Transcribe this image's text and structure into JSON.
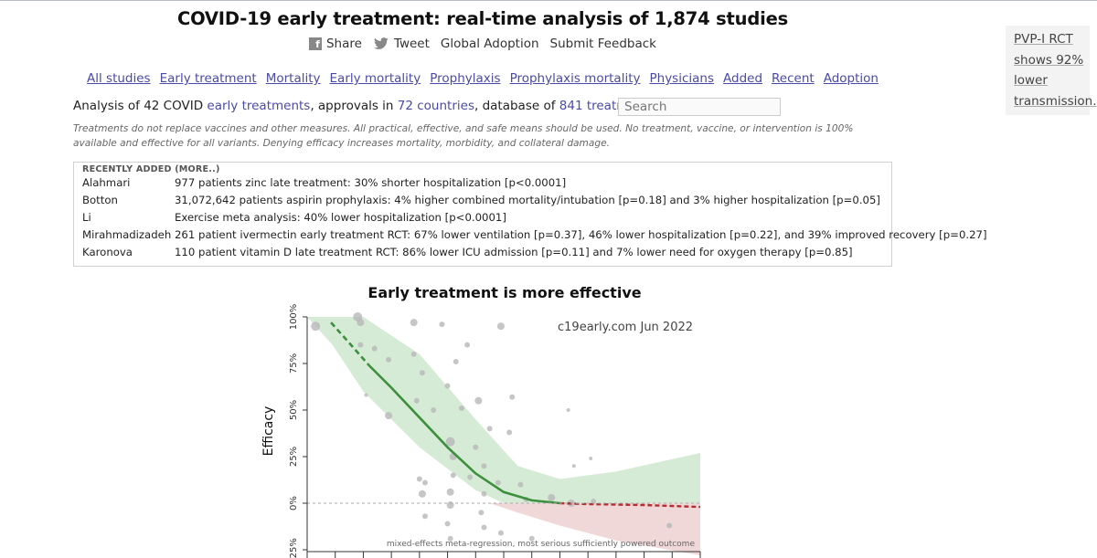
{
  "page": {
    "title": "COVID-19 early treatment: real-time analysis of 1,874 studies"
  },
  "share": {
    "share_label": "Share",
    "tweet_label": "Tweet",
    "global_label": "Global Adoption",
    "feedback_label": "Submit Feedback"
  },
  "nav": {
    "items": [
      "All studies",
      "Early treatment",
      "Mortality",
      "Early mortality",
      "Prophylaxis",
      "Prophylaxis mortality",
      "Physicians",
      "Added",
      "Recent",
      "Adoption"
    ]
  },
  "analysis": {
    "part1": "Analysis of 42 COVID ",
    "link1": "early treatments",
    "part2": ", approvals in ",
    "link2": "72 countries",
    "part3": ", database of ",
    "link3": "841 treatments",
    "part4": "."
  },
  "search": {
    "placeholder": "Search"
  },
  "disclaimer": "Treatments do not replace vaccines and other measures. All practical, effective, and safe means should be used. No treatment, vaccine, or intervention is 100% available and effective for all variants. Denying efficacy increases mortality, morbidity, and collateral damage.",
  "recent": {
    "heading": "RECENTLY ADDED (MORE..)",
    "rows": [
      {
        "author": "Alahmari",
        "summary": "977 patients zinc late treatment: 30% shorter hospitalization [p<0.0001]"
      },
      {
        "author": "Botton",
        "summary": "31,072,642 patients aspirin prophylaxis: 4% higher combined mortality/intubation [p=0.18] and 3% higher hospitalization [p=0.05]"
      },
      {
        "author": "Li",
        "summary": "Exercise meta analysis: 40% lower hospitalization [p<0.0001]"
      },
      {
        "author": "Mirahmadizadeh",
        "summary": "261 patient ivermectin early treatment RCT: 67% lower ventilation [p=0.37], 46% lower hospitalization [p=0.22], and 39% improved recovery [p=0.27]"
      },
      {
        "author": "Karonova",
        "summary": "110 patient vitamin D late treatment RCT: 86% lower ICU admission [p=0.11] and 7% lower need for oxygen therapy [p=0.85]"
      }
    ]
  },
  "side": {
    "lines": [
      "PVP-I RCT",
      "shows 92%",
      "lower",
      "transmission."
    ]
  },
  "chart_data": {
    "type": "scatter",
    "title": "Early treatment is more effective",
    "ylabel": "Efficacy",
    "watermark": "c19early.com Jun 2022",
    "footnote": "mixed-effects meta-regression, most serious sufficiently powered outcome",
    "ylim": [
      -25,
      100
    ],
    "xlim": [
      0,
      14
    ],
    "yticks": [
      "100%",
      "75%",
      "50%",
      "25%",
      "0%",
      "-25%"
    ],
    "ytick_values": [
      100,
      75,
      50,
      25,
      0,
      -25
    ],
    "colors": {
      "fit": "#3d8f3d",
      "fit_neg": "#b03030",
      "band_pos": "#cfe8cf",
      "band_neg": "#f0d4d4",
      "points": "#b8b8b8"
    },
    "fit_curve": [
      {
        "x": 0.85,
        "y": 97
      },
      {
        "x": 1.5,
        "y": 86
      },
      {
        "x": 2.2,
        "y": 74
      },
      {
        "x": 3.0,
        "y": 62
      },
      {
        "x": 4.0,
        "y": 46
      },
      {
        "x": 5.0,
        "y": 30
      },
      {
        "x": 6.0,
        "y": 16
      },
      {
        "x": 7.0,
        "y": 6
      },
      {
        "x": 8.0,
        "y": 1.5
      },
      {
        "x": 9.0,
        "y": 0
      },
      {
        "x": 10.0,
        "y": -0.5
      },
      {
        "x": 12.0,
        "y": -1
      },
      {
        "x": 14.0,
        "y": -2
      }
    ],
    "points": [
      {
        "x": 0.3,
        "y": 95,
        "r": 5
      },
      {
        "x": 1.8,
        "y": 100,
        "r": 5
      },
      {
        "x": 1.9,
        "y": 97,
        "r": 4
      },
      {
        "x": 3.8,
        "y": 97,
        "r": 4
      },
      {
        "x": 4.8,
        "y": 96,
        "r": 3
      },
      {
        "x": 5.7,
        "y": 85,
        "r": 3
      },
      {
        "x": 6.9,
        "y": 95,
        "r": 4
      },
      {
        "x": 1.9,
        "y": 85,
        "r": 3
      },
      {
        "x": 2.4,
        "y": 83,
        "r": 3
      },
      {
        "x": 2.9,
        "y": 77,
        "r": 3
      },
      {
        "x": 3.8,
        "y": 80,
        "r": 3
      },
      {
        "x": 4.1,
        "y": 70,
        "r": 3
      },
      {
        "x": 5.3,
        "y": 76,
        "r": 3
      },
      {
        "x": 5.0,
        "y": 63,
        "r": 3
      },
      {
        "x": 3.9,
        "y": 55,
        "r": 3
      },
      {
        "x": 6.1,
        "y": 55,
        "r": 4
      },
      {
        "x": 7.3,
        "y": 57,
        "r": 3
      },
      {
        "x": 2.9,
        "y": 47,
        "r": 4
      },
      {
        "x": 4.5,
        "y": 50,
        "r": 3
      },
      {
        "x": 5.5,
        "y": 51,
        "r": 3
      },
      {
        "x": 6.5,
        "y": 40,
        "r": 3
      },
      {
        "x": 7.2,
        "y": 38,
        "r": 3
      },
      {
        "x": 5.1,
        "y": 33,
        "r": 5
      },
      {
        "x": 5.2,
        "y": 25,
        "r": 4
      },
      {
        "x": 6.0,
        "y": 30,
        "r": 3
      },
      {
        "x": 6.3,
        "y": 20,
        "r": 3
      },
      {
        "x": 4.0,
        "y": 13,
        "r": 3
      },
      {
        "x": 4.2,
        "y": 11,
        "r": 3
      },
      {
        "x": 5.2,
        "y": 15,
        "r": 3
      },
      {
        "x": 5.8,
        "y": 14,
        "r": 3
      },
      {
        "x": 6.8,
        "y": 11,
        "r": 3
      },
      {
        "x": 7.6,
        "y": 10,
        "r": 3
      },
      {
        "x": 4.1,
        "y": 5,
        "r": 4
      },
      {
        "x": 5.1,
        "y": 6,
        "r": 4
      },
      {
        "x": 6.3,
        "y": 5,
        "r": 3
      },
      {
        "x": 7.8,
        "y": 2,
        "r": 3
      },
      {
        "x": 8.7,
        "y": 3,
        "r": 4
      },
      {
        "x": 9.4,
        "y": 0,
        "r": 4
      },
      {
        "x": 5.1,
        "y": -1,
        "r": 4
      },
      {
        "x": 4.2,
        "y": -7,
        "r": 3
      },
      {
        "x": 5.0,
        "y": -11,
        "r": 3
      },
      {
        "x": 6.2,
        "y": -5,
        "r": 3
      },
      {
        "x": 6.3,
        "y": -13,
        "r": 3
      },
      {
        "x": 6.9,
        "y": -16,
        "r": 3
      },
      {
        "x": 5.1,
        "y": -19,
        "r": 3
      },
      {
        "x": 8.0,
        "y": -19,
        "r": 3
      },
      {
        "x": 10.2,
        "y": 1,
        "r": 3
      },
      {
        "x": 12.9,
        "y": -12,
        "r": 3
      },
      {
        "x": 9.5,
        "y": 20,
        "r": 2
      },
      {
        "x": 10.1,
        "y": 24,
        "r": 2
      },
      {
        "x": 9.3,
        "y": 50,
        "r": 2
      },
      {
        "x": 2.1,
        "y": 58,
        "r": 2
      }
    ]
  }
}
